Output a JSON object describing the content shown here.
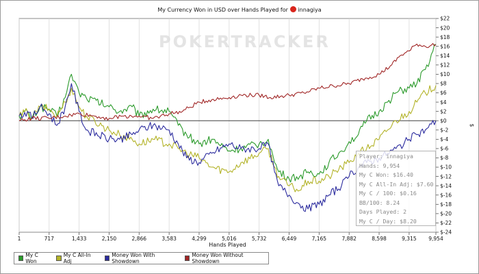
{
  "header": {
    "title": "My Currency Won in USD over Hands Played for",
    "player": "innagiya"
  },
  "watermark": "POKERTRACKER",
  "stats": [
    "Player: innagiya",
    "Hands: 9,954",
    "My C Won: $16.40",
    "My C All-In Adj: $7.60",
    "My C / 100: $0.16",
    "BB/100: 8.24",
    "Days Played: 2",
    "My C / Day: $8.20"
  ],
  "chart_data": {
    "type": "line",
    "title": "My Currency Won in USD over Hands Played for innagiya",
    "xlabel": "Hands Played",
    "ylabel": "$",
    "xlim": [
      1,
      9954
    ],
    "ylim": [
      -24,
      22
    ],
    "x_ticks": [
      "1",
      "717",
      "1,433",
      "2,150",
      "2,866",
      "3,583",
      "4,299",
      "5,016",
      "5,732",
      "6,449",
      "7,165",
      "7,882",
      "8,598",
      "9,315",
      "9,954"
    ],
    "y_ticks": [
      "$22",
      "$20",
      "$18",
      "$16",
      "$14",
      "$12",
      "$10",
      "$8",
      "$6",
      "$4",
      "$2",
      "$0",
      "$-2",
      "$-4",
      "$-6",
      "$-8",
      "$-10",
      "$-12",
      "$-14",
      "$-16",
      "$-18",
      "$-20",
      "$-22",
      "$-24"
    ],
    "grid": "vertical",
    "legend_position": "bottom-left",
    "series": [
      {
        "name": "My C Won",
        "color": "#2a9a2a",
        "x": [
          1,
          200,
          300,
          500,
          717,
          900,
          1100,
          1250,
          1433,
          1600,
          2150,
          2400,
          2700,
          2866,
          3200,
          3583,
          3800,
          4000,
          4299,
          4600,
          5016,
          5300,
          5732,
          5950,
          6100,
          6200,
          6449,
          6700,
          6900,
          7165,
          7400,
          7700,
          7882,
          8100,
          8300,
          8598,
          8800,
          9000,
          9315,
          9500,
          9700,
          9954
        ],
        "values": [
          1,
          2,
          0.5,
          3,
          2.5,
          1,
          5,
          10,
          6,
          5,
          3,
          2,
          3,
          1,
          2.5,
          2,
          -1,
          -3,
          -5,
          -4,
          -6.5,
          -6,
          -5,
          -4,
          -9,
          -11,
          -12.5,
          -12,
          -11,
          -11.5,
          -9,
          -6.5,
          -4.5,
          -3,
          0,
          2,
          4,
          6,
          7,
          8,
          11,
          16.4
        ]
      },
      {
        "name": "My C All-In Adj",
        "color": "#b3b328",
        "x": [
          1,
          200,
          300,
          500,
          717,
          900,
          1100,
          1250,
          1433,
          1600,
          2150,
          2400,
          2700,
          2866,
          3200,
          3583,
          3800,
          4000,
          4299,
          4600,
          5016,
          5300,
          5732,
          5950,
          6100,
          6200,
          6449,
          6700,
          6900,
          7165,
          7400,
          7700,
          7882,
          8100,
          8300,
          8598,
          8800,
          9000,
          9315,
          9500,
          9700,
          9954
        ],
        "values": [
          1,
          2,
          0.5,
          3,
          2.5,
          1,
          4,
          7,
          3,
          1,
          -2,
          -3,
          -4,
          -5,
          -4,
          -5,
          -6,
          -7,
          -8,
          -10,
          -11,
          -9,
          -7,
          -6,
          -10,
          -12,
          -14,
          -15,
          -13,
          -13,
          -12,
          -10,
          -9,
          -7,
          -6,
          -4,
          -2,
          0,
          2,
          4,
          6,
          7.6
        ]
      },
      {
        "name": "Money Won With Showdown",
        "color": "#2b2b9e",
        "x": [
          1,
          200,
          300,
          500,
          717,
          900,
          1100,
          1250,
          1433,
          1600,
          2150,
          2400,
          2700,
          2866,
          3200,
          3583,
          3800,
          4000,
          4299,
          4600,
          5016,
          5300,
          5732,
          5950,
          6100,
          6200,
          6449,
          6700,
          6900,
          7165,
          7400,
          7700,
          7882,
          8100,
          8300,
          8598,
          8800,
          9000,
          9315,
          9500,
          9700,
          9954
        ],
        "values": [
          1,
          2,
          0.5,
          3,
          1.5,
          -1,
          3,
          8,
          2,
          -2,
          -4,
          -4,
          -3,
          -2,
          -1,
          -2,
          -5,
          -8,
          -9,
          -7,
          -5,
          -6,
          -6,
          -5,
          -11,
          -14,
          -16,
          -18,
          -19,
          -18,
          -16,
          -14,
          -12,
          -10,
          -9,
          -8,
          -7,
          -6,
          -4,
          -3,
          -2,
          0
        ]
      },
      {
        "name": "Money Won Without Showdown",
        "color": "#a02525",
        "x": [
          1,
          300,
          717,
          1100,
          1433,
          1800,
          2150,
          2500,
          2866,
          3200,
          3583,
          3900,
          4299,
          4600,
          5016,
          5300,
          5732,
          6000,
          6449,
          6800,
          7165,
          7500,
          7882,
          8200,
          8598,
          8900,
          9100,
          9315,
          9500,
          9700,
          9954
        ],
        "values": [
          0,
          0.5,
          0.5,
          1,
          1.5,
          1,
          0.5,
          1,
          1,
          0.5,
          1.5,
          2,
          4,
          4.5,
          5,
          5.5,
          5.5,
          5,
          5.5,
          6,
          7,
          7.5,
          8,
          9,
          10,
          12,
          14,
          15,
          16.5,
          16,
          16.4
        ]
      }
    ]
  }
}
